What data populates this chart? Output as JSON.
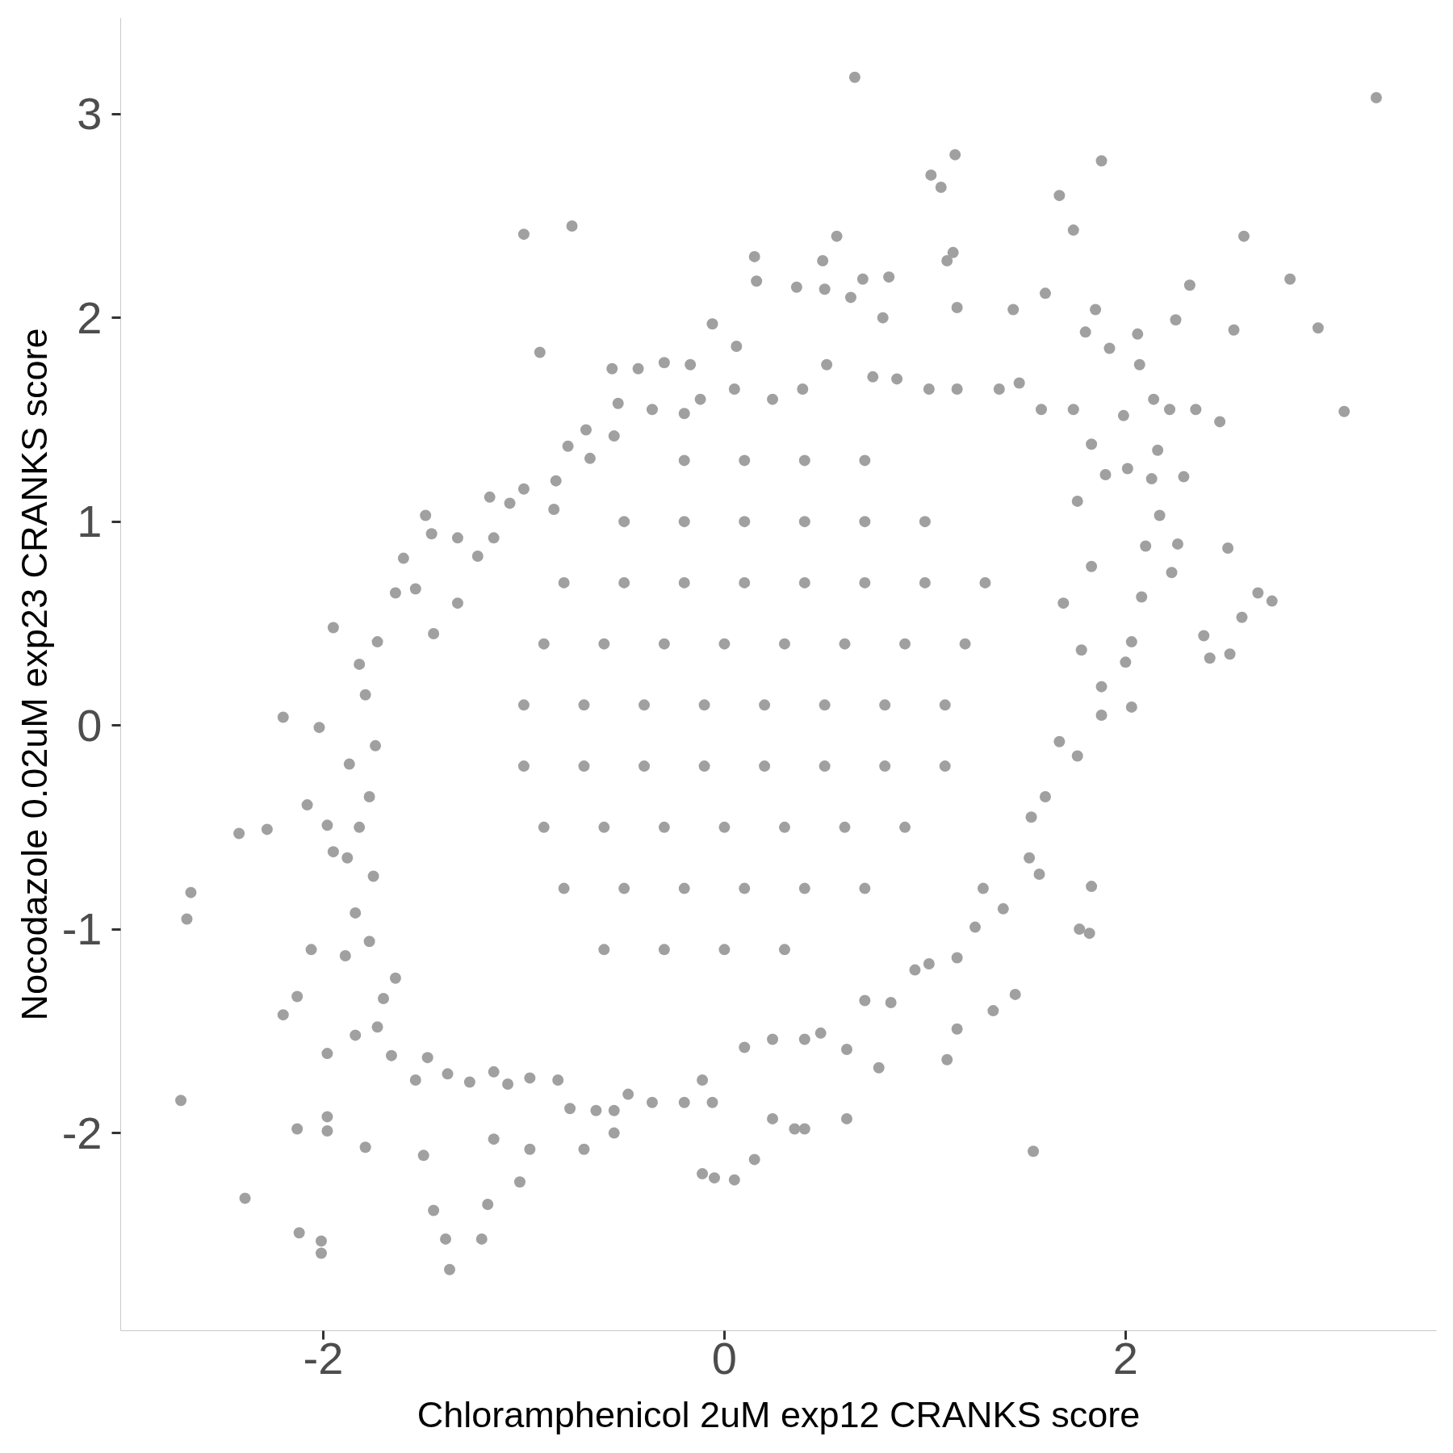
{
  "chart_data": {
    "type": "scatter",
    "xlabel": "Chloramphenicol 2uM exp12 CRANKS score",
    "ylabel": "Nocodazole 0.02uM exp23 CRANKS score",
    "xlim": [
      -3.01,
      3.55
    ],
    "ylim": [
      -2.97,
      3.47
    ],
    "xticks": [
      -2,
      0,
      2
    ],
    "yticks": [
      -2,
      -1,
      0,
      1,
      2,
      3
    ],
    "grid": false,
    "marker": "circle",
    "series": [
      {
        "color": "#a0a0a0",
        "x": [
          0.65,
          3.25,
          1.15,
          1.03,
          1.08,
          1.88,
          1.67,
          1.74,
          2.59,
          2.82,
          2.96,
          3.09,
          2.32,
          2.25,
          2.54,
          2.51,
          2.39,
          2.66,
          2.73,
          2.58,
          2.52,
          2.42,
          2.23,
          2.26,
          2.29,
          2.03,
          1.83,
          1.82,
          1.77,
          1.54,
          1.45,
          1.34,
          1.16,
          1.11,
          0.77,
          0.61,
          0.4,
          0.35,
          0.24,
          0.15,
          0.05,
          -0.05,
          -0.11,
          -0.76,
          -1.0,
          -0.92,
          -1.07,
          -1.49,
          -1.46,
          -1.33,
          -1.6,
          -2.2,
          -1.95,
          -2.02,
          -2.42,
          -2.28,
          -2.66,
          -2.68,
          -2.71,
          -2.39,
          -2.12,
          -2.01,
          -2.01,
          -1.37,
          -1.39,
          -1.21,
          -1.45,
          -1.18,
          -1.02,
          -1.15,
          -1.5,
          -1.79,
          -2.13,
          -1.98,
          -1.98,
          -2.2,
          -2.13,
          -2.06,
          -1.98,
          -2.08,
          -1.98,
          -1.95,
          -0.97,
          -0.7,
          -0.55,
          -0.56,
          -0.43,
          -0.3,
          -0.17,
          -0.06,
          0.06,
          0.15,
          0.16,
          0.36,
          0.5,
          0.49,
          0.56,
          0.63,
          0.69,
          0.82,
          0.79,
          1.11,
          1.14,
          1.16,
          1.44,
          1.6,
          1.85,
          1.8,
          2.06,
          2.07,
          1.92,
          1.99,
          2.14,
          2.22,
          2.35,
          2.47,
          2.16,
          2.13,
          2.01,
          2.17,
          2.1,
          2.08,
          2.03,
          2.0,
          1.88,
          1.88,
          1.67,
          1.76,
          1.6,
          1.53,
          1.52,
          1.57,
          1.39,
          1.29,
          1.25,
          1.16,
          1.02,
          0.95,
          0.83,
          0.7,
          0.61,
          0.48,
          0.4,
          0.24,
          0.1,
          -0.06,
          -0.11,
          -0.2,
          -0.36,
          -0.48,
          -0.55,
          -0.64,
          -0.77,
          -0.83,
          -0.97,
          -1.08,
          -1.15,
          -1.27,
          -1.38,
          -1.48,
          -1.54,
          -1.66,
          -1.73,
          -1.84,
          -1.7,
          -1.64,
          -1.77,
          -1.89,
          -1.84,
          -1.75,
          -1.88,
          -1.82,
          -1.77,
          -1.87,
          -1.74,
          -1.79,
          -1.82,
          -1.73,
          -1.64,
          -1.54,
          -1.45,
          -1.33,
          -1.23,
          -1.15,
          -1.17,
          -1.0,
          -0.84,
          -0.85,
          -0.78,
          -0.69,
          -0.67,
          -0.55,
          -0.53,
          -0.36,
          -0.2,
          -0.12,
          0.05,
          0.24,
          0.39,
          0.51,
          0.74,
          0.86,
          1.02,
          1.16,
          1.37,
          1.47,
          1.58,
          1.74,
          1.83,
          1.9,
          1.76,
          1.83,
          1.69,
          1.78,
          -0.2,
          0.1,
          0.4,
          0.7,
          -0.5,
          -0.2,
          0.1,
          0.4,
          0.7,
          1.0,
          -0.8,
          -0.5,
          -0.2,
          0.1,
          0.4,
          0.7,
          1.0,
          1.3,
          -0.9,
          -0.6,
          -0.3,
          0.0,
          0.3,
          0.6,
          0.9,
          1.2,
          -1.0,
          -0.7,
          -0.4,
          -0.1,
          0.2,
          0.5,
          0.8,
          1.1,
          -1.0,
          -0.7,
          -0.4,
          -0.1,
          0.2,
          0.5,
          0.8,
          1.1,
          -0.9,
          -0.6,
          -0.3,
          0.0,
          0.3,
          0.6,
          0.9,
          -0.8,
          -0.5,
          -0.2,
          0.1,
          0.4,
          0.7,
          -0.6,
          -0.3,
          0.0,
          0.3
        ],
        "values": [
          3.18,
          3.08,
          2.8,
          2.7,
          2.64,
          2.77,
          2.6,
          2.43,
          2.4,
          2.19,
          1.95,
          1.54,
          2.16,
          1.99,
          1.94,
          0.87,
          0.44,
          0.65,
          0.61,
          0.53,
          0.35,
          0.33,
          0.75,
          0.89,
          1.22,
          0.09,
          -0.79,
          -1.02,
          -1.0,
          -2.09,
          -1.32,
          -1.4,
          -1.49,
          -1.64,
          -1.68,
          -1.93,
          -1.98,
          -1.98,
          -1.93,
          -2.13,
          -2.23,
          -2.22,
          -2.2,
          2.45,
          2.41,
          1.83,
          1.09,
          1.03,
          0.94,
          0.92,
          0.82,
          0.04,
          0.48,
          -0.01,
          -0.53,
          -0.51,
          -0.82,
          -0.95,
          -1.84,
          -2.32,
          -2.49,
          -2.53,
          -2.59,
          -2.67,
          -2.52,
          -2.52,
          -2.38,
          -2.35,
          -2.24,
          -2.03,
          -2.11,
          -2.07,
          -1.98,
          -1.99,
          -1.92,
          -1.42,
          -1.33,
          -1.1,
          -1.61,
          -0.39,
          -0.49,
          -0.62,
          -2.08,
          -2.08,
          -2.0,
          1.75,
          1.75,
          1.78,
          1.77,
          1.97,
          1.86,
          2.3,
          2.18,
          2.15,
          2.14,
          2.28,
          2.4,
          2.1,
          2.19,
          2.2,
          2.0,
          2.28,
          2.32,
          2.05,
          2.04,
          2.12,
          2.04,
          1.93,
          1.92,
          1.77,
          1.85,
          1.52,
          1.6,
          1.55,
          1.55,
          1.49,
          1.35,
          1.21,
          1.26,
          1.03,
          0.88,
          0.63,
          0.41,
          0.31,
          0.19,
          0.05,
          -0.08,
          -0.15,
          -0.35,
          -0.45,
          -0.65,
          -0.73,
          -0.9,
          -0.8,
          -0.99,
          -1.14,
          -1.17,
          -1.2,
          -1.36,
          -1.35,
          -1.59,
          -1.51,
          -1.54,
          -1.54,
          -1.58,
          -1.85,
          -1.74,
          -1.85,
          -1.85,
          -1.81,
          -1.89,
          -1.89,
          -1.88,
          -1.74,
          -1.73,
          -1.76,
          -1.7,
          -1.75,
          -1.71,
          -1.63,
          -1.74,
          -1.62,
          -1.48,
          -1.52,
          -1.34,
          -1.24,
          -1.06,
          -1.13,
          -0.92,
          -0.74,
          -0.65,
          -0.5,
          -0.35,
          -0.19,
          -0.1,
          0.15,
          0.3,
          0.41,
          0.65,
          0.67,
          0.45,
          0.6,
          0.83,
          0.92,
          1.12,
          1.16,
          1.2,
          1.06,
          1.37,
          1.45,
          1.31,
          1.42,
          1.58,
          1.55,
          1.53,
          1.6,
          1.65,
          1.6,
          1.65,
          1.77,
          1.71,
          1.7,
          1.65,
          1.65,
          1.65,
          1.68,
          1.55,
          1.55,
          1.38,
          1.23,
          1.1,
          0.78,
          0.6,
          0.37,
          1.3,
          1.3,
          1.3,
          1.3,
          1.0,
          1.0,
          1.0,
          1.0,
          1.0,
          1.0,
          0.7,
          0.7,
          0.7,
          0.7,
          0.7,
          0.7,
          0.7,
          0.7,
          0.4,
          0.4,
          0.4,
          0.4,
          0.4,
          0.4,
          0.4,
          0.4,
          0.1,
          0.1,
          0.1,
          0.1,
          0.1,
          0.1,
          0.1,
          0.1,
          -0.2,
          -0.2,
          -0.2,
          -0.2,
          -0.2,
          -0.2,
          -0.2,
          -0.2,
          -0.5,
          -0.5,
          -0.5,
          -0.5,
          -0.5,
          -0.5,
          -0.5,
          -0.8,
          -0.8,
          -0.8,
          -0.8,
          -0.8,
          -0.8,
          -1.1,
          -1.1,
          -1.1,
          -1.1
        ]
      }
    ]
  }
}
